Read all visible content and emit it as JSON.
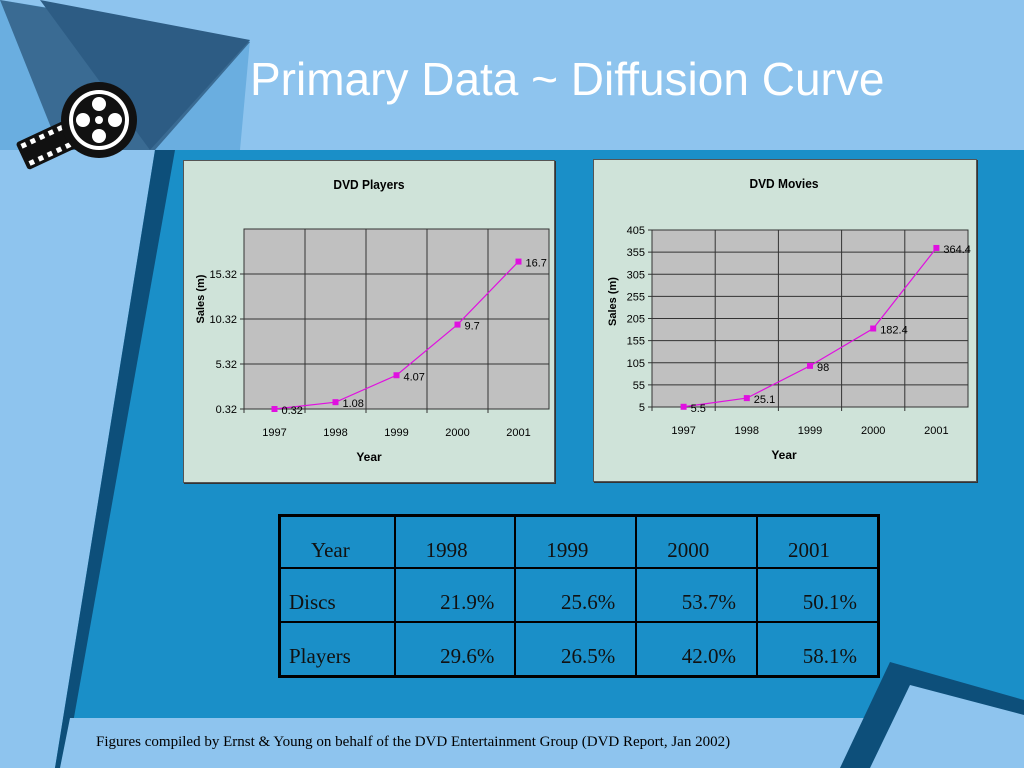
{
  "slide": {
    "title": "Primary Data ~ Diffusion Curve",
    "footer": "Figures compiled by Ernst & Young on behalf of the DVD Entertainment Group (DVD Report, Jan 2002)"
  },
  "chart_data": [
    {
      "type": "line",
      "title": "DVD Players",
      "xlabel": "Year",
      "ylabel": "Sales (m)",
      "categories": [
        "1997",
        "1998",
        "1999",
        "2000",
        "2001"
      ],
      "series": [
        {
          "values": [
            0.32,
            1.08,
            4.07,
            9.7,
            16.7
          ]
        }
      ],
      "data_labels": [
        "0.32",
        "1.08",
        "4.07",
        "9.7",
        "16.7"
      ],
      "yticks": [
        "0.32",
        "5.32",
        "10.32",
        "15.32"
      ],
      "ylim": [
        0.32,
        20.32
      ],
      "grid": true,
      "marker_color": "#e010e0"
    },
    {
      "type": "line",
      "title": "DVD Movies",
      "xlabel": "Year",
      "ylabel": "Sales (m)",
      "categories": [
        "1997",
        "1998",
        "1999",
        "2000",
        "2001"
      ],
      "series": [
        {
          "values": [
            5.5,
            25.1,
            98,
            182.4,
            364.4
          ]
        }
      ],
      "data_labels": [
        "5.5",
        "25.1",
        "98",
        "182.4",
        "364.4"
      ],
      "yticks": [
        "5",
        "55",
        "105",
        "155",
        "205",
        "255",
        "305",
        "355",
        "405"
      ],
      "ylim": [
        5,
        405
      ],
      "grid": true,
      "marker_color": "#e010e0"
    }
  ],
  "table": {
    "header": [
      "Year",
      "1998",
      "1999",
      "2000",
      "2001"
    ],
    "rows": [
      {
        "label": "Discs",
        "values": [
          "21.9%",
          "25.6%",
          "53.7%",
          "50.1%"
        ]
      },
      {
        "label": "Players",
        "values": [
          "29.6%",
          "26.5%",
          "42.0%",
          "58.1%"
        ]
      }
    ]
  },
  "colors": {
    "background": "#1a8fc8",
    "light_panel": "#8ec4ee",
    "dark_panel": "#0d4f7a",
    "chart_bg": "#cfe3d9",
    "plot_bg": "#c0c0c0",
    "line": "#e010e0"
  },
  "icons": [
    "film-reel-icon"
  ]
}
